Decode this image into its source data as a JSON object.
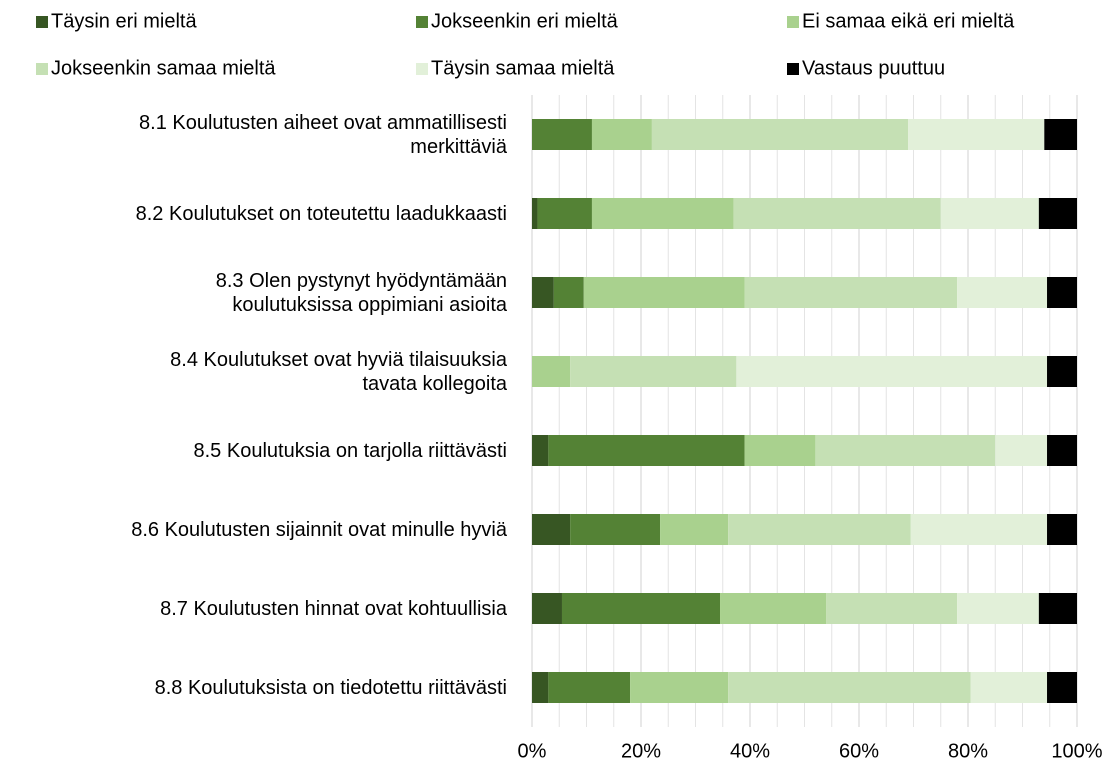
{
  "chart_data": {
    "type": "stacked_barh",
    "categories": [
      "8.1 Koulutusten aiheet ovat ammatillisesti\nmerkittäviä",
      "8.2 Koulutukset on toteutettu laadukkaasti",
      "8.3 Olen pystynyt hyödyntämään\nkoulutuksissa oppimiani asioita",
      "8.4 Koulutukset ovat hyviä tilaisuuksia\ntavata kollegoita",
      "8.5 Koulutuksia on tarjolla riittävästi",
      "8.6 Koulutusten sijainnit ovat minulle hyviä",
      "8.7 Koulutusten hinnat ovat kohtuullisia",
      "8.8 Koulutuksista on tiedotettu riittävästi"
    ],
    "series": [
      {
        "name": "Täysin eri mieltä",
        "color": "#375623",
        "values": [
          0,
          1,
          4,
          0,
          3,
          7,
          5.5,
          3
        ]
      },
      {
        "name": "Jokseenkin eri mieltä",
        "color": "#548235",
        "values": [
          11,
          10,
          5.5,
          0,
          36,
          16.5,
          29,
          15
        ]
      },
      {
        "name": "Ei samaa eikä eri mieltä",
        "color": "#a9d18e",
        "values": [
          11,
          26,
          29.5,
          7,
          13,
          12.5,
          19.5,
          18
        ]
      },
      {
        "name": "Jokseenkin samaa mieltä",
        "color": "#c5e0b4",
        "values": [
          47,
          38,
          39,
          30.5,
          33,
          33.5,
          24,
          44.5
        ]
      },
      {
        "name": "Täysin samaa mieltä",
        "color": "#e2f0d9",
        "values": [
          25,
          18,
          16.5,
          57,
          9.5,
          25,
          15,
          14
        ]
      },
      {
        "name": "Vastaus puuttuu",
        "color": "#000000",
        "values": [
          6,
          7,
          5.5,
          5.5,
          5.5,
          5.5,
          7,
          5.5
        ]
      }
    ],
    "xlim": [
      0,
      100
    ],
    "xticks": [
      {
        "value": 0,
        "label": "0%"
      },
      {
        "value": 20,
        "label": "20%"
      },
      {
        "value": 40,
        "label": "40%"
      },
      {
        "value": 60,
        "label": "60%"
      },
      {
        "value": 80,
        "label": "80%"
      },
      {
        "value": 100,
        "label": "100%"
      }
    ],
    "minor_xticks": [
      5,
      10,
      15,
      25,
      30,
      35,
      45,
      50,
      55,
      65,
      70,
      75,
      85,
      90,
      95
    ],
    "grid": true,
    "legend": "top"
  }
}
